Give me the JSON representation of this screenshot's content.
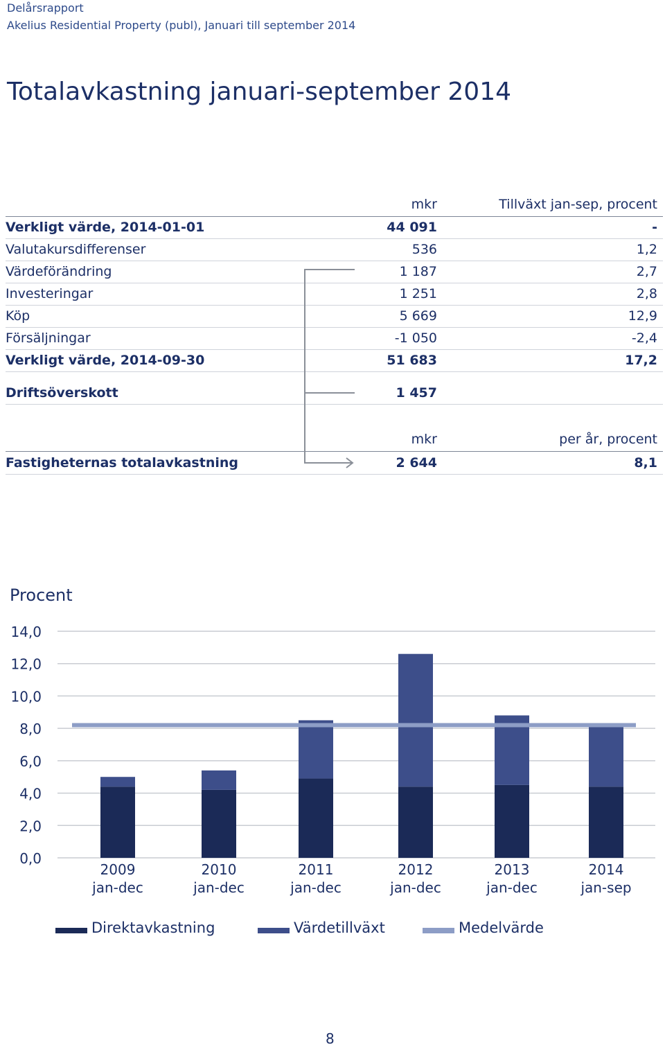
{
  "header": {
    "line1": "Delårsrapport",
    "line2": "Akelius Residential Property (publ), Januari till september 2014"
  },
  "title": "Totalavkastning januari-september 2014",
  "table1": {
    "col1_header": "mkr",
    "col2_header": "Tillväxt jan-sep, procent",
    "rows": [
      {
        "label": "Verkligt värde, 2014-01-01",
        "mkr": "44 091",
        "pct": "-",
        "bold": true
      },
      {
        "label": "Valutakursdifferenser",
        "mkr": "536",
        "pct": "1,2",
        "bold": false
      },
      {
        "label": "Värdeförändring",
        "mkr": "1 187",
        "pct": "2,7",
        "bold": false
      },
      {
        "label": "Investeringar",
        "mkr": "1 251",
        "pct": "2,8",
        "bold": false
      },
      {
        "label": "Köp",
        "mkr": "5 669",
        "pct": "12,9",
        "bold": false
      },
      {
        "label": "Försäljningar",
        "mkr": "-1 050",
        "pct": "-2,4",
        "bold": false
      },
      {
        "label": "Verkligt värde, 2014-09-30",
        "mkr": "51 683",
        "pct": "17,2",
        "bold": true
      }
    ]
  },
  "drift": {
    "label": "Driftsöverskott",
    "mkr": "1 457"
  },
  "table2": {
    "col1_header": "mkr",
    "col2_header": "per år, procent",
    "row": {
      "label": "Fastigheternas totalavkastning",
      "mkr": "2 644",
      "pct": "8,1"
    }
  },
  "chart_data": {
    "type": "bar",
    "stacked": true,
    "ylabel": "Procent",
    "ylim": [
      0,
      14
    ],
    "yticks": [
      "0,0",
      "2,0",
      "4,0",
      "6,0",
      "8,0",
      "10,0",
      "12,0",
      "14,0"
    ],
    "categories": [
      [
        "2009",
        "jan-dec"
      ],
      [
        "2010",
        "jan-dec"
      ],
      [
        "2011",
        "jan-dec"
      ],
      [
        "2012",
        "jan-dec"
      ],
      [
        "2013",
        "jan-dec"
      ],
      [
        "2014",
        "jan-sep"
      ]
    ],
    "series": [
      {
        "name": "Direktavkastning",
        "color": "#1b2a57",
        "values": [
          4.4,
          4.2,
          4.9,
          4.4,
          4.5,
          4.4
        ]
      },
      {
        "name": "Värdetillväxt",
        "color": "#3d4e8a",
        "values": [
          0.6,
          1.2,
          3.6,
          8.2,
          4.3,
          3.7
        ]
      }
    ],
    "line": {
      "name": "Medelvärde",
      "color": "#8d9dc6",
      "value": 8.2
    },
    "grid": true,
    "legend_position": "bottom"
  },
  "page_number": "8"
}
